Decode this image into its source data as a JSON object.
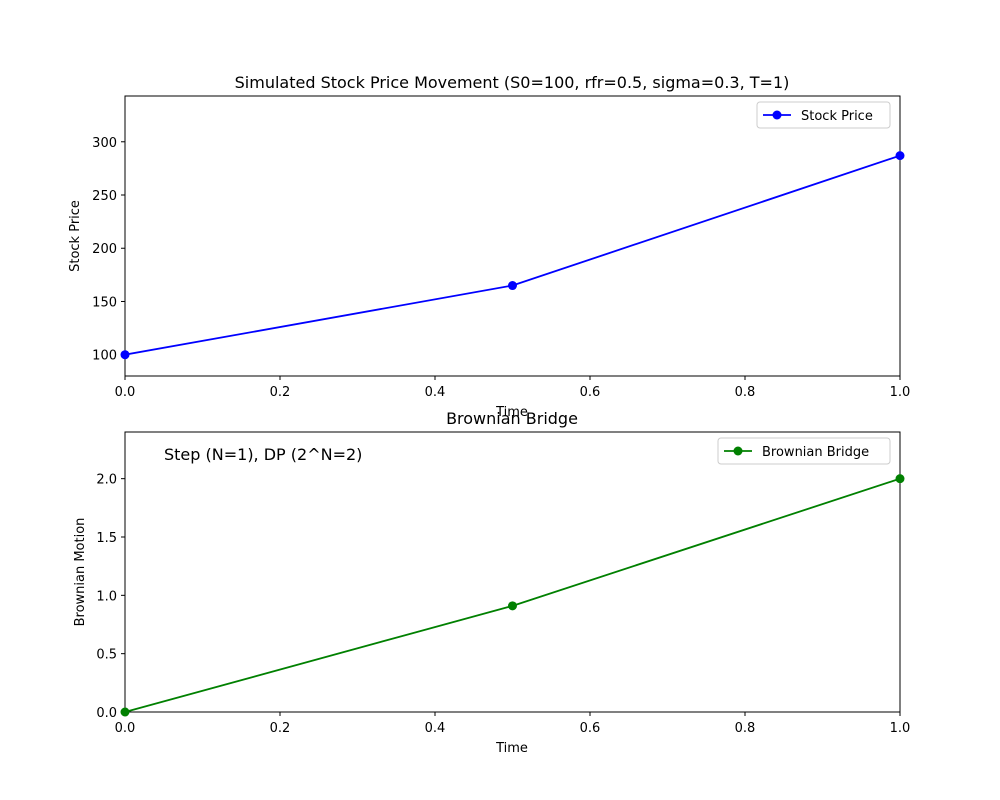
{
  "chart_data": [
    {
      "type": "line",
      "title": "Simulated Stock Price Movement (S0=100, rfr=0.5, sigma=0.3, T=1)",
      "xlabel": "Time",
      "ylabel": "Stock Price",
      "xlim": [
        0.0,
        1.0
      ],
      "ylim": [
        80,
        343
      ],
      "x_ticks": [
        "0.0",
        "0.2",
        "0.4",
        "0.6",
        "0.8",
        "1.0"
      ],
      "y_ticks": [
        "100",
        "150",
        "200",
        "250",
        "300"
      ],
      "legend_position": "upper-right",
      "grid": false,
      "series": [
        {
          "name": "Stock Price",
          "color": "#0000ff",
          "marker": "circle",
          "x": [
            0.0,
            0.5,
            1.0
          ],
          "y": [
            100,
            165,
            287
          ]
        }
      ]
    },
    {
      "type": "line",
      "title": "Brownian Bridge",
      "xlabel": "Time",
      "ylabel": "Brownian Motion",
      "xlim": [
        0.0,
        1.0
      ],
      "ylim": [
        0.0,
        2.4
      ],
      "x_ticks": [
        "0.0",
        "0.2",
        "0.4",
        "0.6",
        "0.8",
        "1.0"
      ],
      "y_ticks": [
        "0.0",
        "0.5",
        "1.0",
        "1.5",
        "2.0"
      ],
      "legend_position": "upper-right",
      "grid": false,
      "annotation": "Step (N=1), DP (2^N=2)",
      "series": [
        {
          "name": "Brownian Bridge",
          "color": "#008000",
          "marker": "circle",
          "x": [
            0.0,
            0.5,
            1.0
          ],
          "y": [
            0.0,
            0.91,
            2.0
          ]
        }
      ]
    }
  ]
}
